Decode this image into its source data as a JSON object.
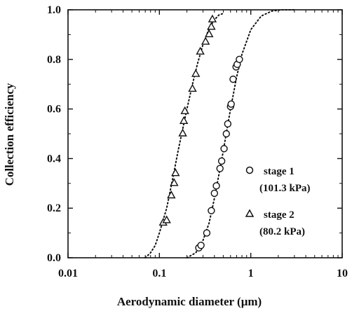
{
  "chart_data": {
    "type": "scatter",
    "xlabel": "Aerodynamic diameter (μm)",
    "ylabel": "Collection efficiency",
    "xscale": "log",
    "xlim": [
      0.01,
      10
    ],
    "ylim": [
      0.0,
      1.0
    ],
    "x_ticks": [
      "0.01",
      "0.1",
      "1",
      "10"
    ],
    "y_ticks": [
      "0.0",
      "0.2",
      "0.4",
      "0.6",
      "0.8",
      "1.0"
    ],
    "grid": false,
    "legend": {
      "placement": "right-middle",
      "entries": [
        {
          "marker": "circle",
          "label_line1": "stage 1",
          "label_line2": "(101.3 kPa)"
        },
        {
          "marker": "triangle",
          "label_line1": "stage 2",
          "label_line2": "(80.2 kPa)"
        }
      ]
    },
    "series": [
      {
        "name": "stage 1 (101.3 kPa)",
        "marker": "circle",
        "points": [
          {
            "x": 0.27,
            "y": 0.04
          },
          {
            "x": 0.285,
            "y": 0.05
          },
          {
            "x": 0.33,
            "y": 0.1
          },
          {
            "x": 0.37,
            "y": 0.19
          },
          {
            "x": 0.4,
            "y": 0.26
          },
          {
            "x": 0.42,
            "y": 0.29
          },
          {
            "x": 0.46,
            "y": 0.36
          },
          {
            "x": 0.48,
            "y": 0.39
          },
          {
            "x": 0.51,
            "y": 0.44
          },
          {
            "x": 0.54,
            "y": 0.5
          },
          {
            "x": 0.56,
            "y": 0.54
          },
          {
            "x": 0.6,
            "y": 0.61
          },
          {
            "x": 0.61,
            "y": 0.62
          },
          {
            "x": 0.64,
            "y": 0.72
          },
          {
            "x": 0.69,
            "y": 0.77
          },
          {
            "x": 0.71,
            "y": 0.78
          },
          {
            "x": 0.75,
            "y": 0.8
          }
        ],
        "fit_curve": [
          {
            "x": 0.2,
            "y": 0.0
          },
          {
            "x": 0.25,
            "y": 0.02
          },
          {
            "x": 0.3,
            "y": 0.07
          },
          {
            "x": 0.35,
            "y": 0.14
          },
          {
            "x": 0.4,
            "y": 0.24
          },
          {
            "x": 0.45,
            "y": 0.34
          },
          {
            "x": 0.5,
            "y": 0.43
          },
          {
            "x": 0.55,
            "y": 0.52
          },
          {
            "x": 0.6,
            "y": 0.6
          },
          {
            "x": 0.7,
            "y": 0.73
          },
          {
            "x": 0.8,
            "y": 0.82
          },
          {
            "x": 1.0,
            "y": 0.92
          },
          {
            "x": 1.3,
            "y": 0.975
          },
          {
            "x": 1.7,
            "y": 0.995
          },
          {
            "x": 2.2,
            "y": 1.0
          },
          {
            "x": 3.0,
            "y": 1.0
          }
        ]
      },
      {
        "name": "stage 2 (80.2 kPa)",
        "marker": "triangle",
        "points": [
          {
            "x": 0.11,
            "y": 0.14
          },
          {
            "x": 0.12,
            "y": 0.15
          },
          {
            "x": 0.135,
            "y": 0.25
          },
          {
            "x": 0.145,
            "y": 0.3
          },
          {
            "x": 0.15,
            "y": 0.34
          },
          {
            "x": 0.18,
            "y": 0.5
          },
          {
            "x": 0.185,
            "y": 0.55
          },
          {
            "x": 0.19,
            "y": 0.59
          },
          {
            "x": 0.23,
            "y": 0.68
          },
          {
            "x": 0.25,
            "y": 0.74
          },
          {
            "x": 0.28,
            "y": 0.83
          },
          {
            "x": 0.32,
            "y": 0.87
          },
          {
            "x": 0.35,
            "y": 0.9
          },
          {
            "x": 0.37,
            "y": 0.93
          },
          {
            "x": 0.38,
            "y": 0.96
          }
        ],
        "fit_curve": [
          {
            "x": 0.07,
            "y": 0.0
          },
          {
            "x": 0.08,
            "y": 0.02
          },
          {
            "x": 0.09,
            "y": 0.05
          },
          {
            "x": 0.1,
            "y": 0.1
          },
          {
            "x": 0.12,
            "y": 0.2
          },
          {
            "x": 0.14,
            "y": 0.32
          },
          {
            "x": 0.16,
            "y": 0.43
          },
          {
            "x": 0.18,
            "y": 0.52
          },
          {
            "x": 0.2,
            "y": 0.6
          },
          {
            "x": 0.23,
            "y": 0.7
          },
          {
            "x": 0.26,
            "y": 0.78
          },
          {
            "x": 0.3,
            "y": 0.86
          },
          {
            "x": 0.35,
            "y": 0.925
          },
          {
            "x": 0.4,
            "y": 0.96
          },
          {
            "x": 0.45,
            "y": 0.98
          },
          {
            "x": 0.5,
            "y": 0.985
          }
        ]
      }
    ]
  }
}
